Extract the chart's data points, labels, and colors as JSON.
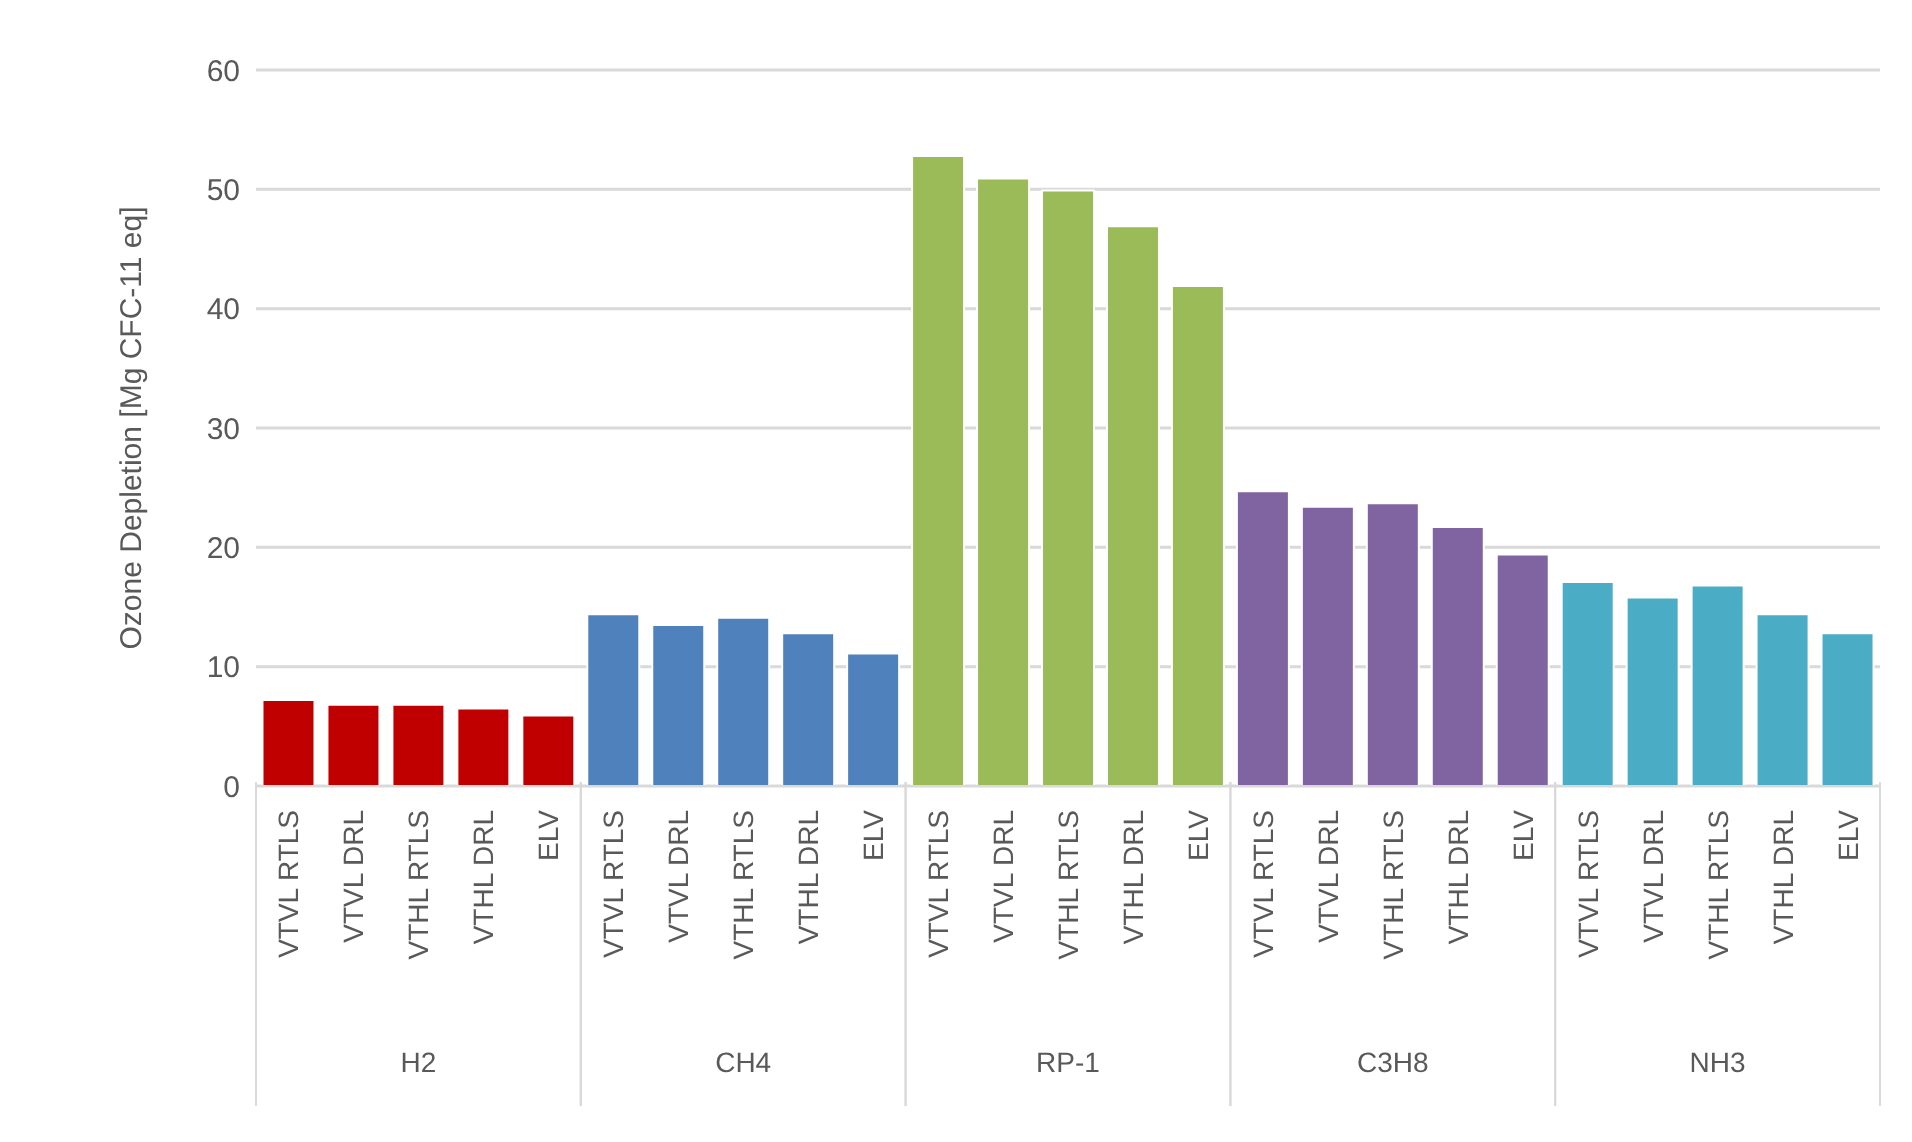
{
  "chart_data": {
    "type": "bar",
    "ylabel": "Ozone Depletion [Mg CFC-11 eq]",
    "categories": [
      "VTVL RTLS",
      "VTVL DRL",
      "VTHL RTLS",
      "VTHL DRL",
      "ELV",
      "VTVL RTLS",
      "VTVL DRL",
      "VTHL RTLS",
      "VTHL DRL",
      "ELV",
      "VTVL RTLS",
      "VTVL DRL",
      "VTHL RTLS",
      "VTHL DRL",
      "ELV",
      "VTVL RTLS",
      "VTVL DRL",
      "VTHL RTLS",
      "VTHL DRL",
      "ELV",
      "VTVL RTLS",
      "VTVL DRL",
      "VTHL RTLS",
      "VTHL DRL",
      "ELV"
    ],
    "series": [
      {
        "color": "#c00000",
        "values": [
          7.2,
          6.8,
          6.8,
          6.5,
          5.9,
          null,
          null,
          null,
          null,
          null,
          null,
          null,
          null,
          null,
          null,
          null,
          null,
          null,
          null,
          null,
          null,
          null,
          null,
          null,
          null
        ]
      },
      {
        "color": "#4f81bd",
        "values": [
          null,
          null,
          null,
          null,
          null,
          14.4,
          13.5,
          14.1,
          12.8,
          11.1,
          null,
          null,
          null,
          null,
          null,
          null,
          null,
          null,
          null,
          null,
          null,
          null,
          null,
          null,
          null
        ]
      },
      {
        "color": "#9bbb59",
        "values": [
          null,
          null,
          null,
          null,
          null,
          null,
          null,
          null,
          null,
          null,
          52.8,
          50.9,
          49.9,
          46.9,
          41.9,
          null,
          null,
          null,
          null,
          null,
          null,
          null,
          null,
          null,
          null
        ]
      },
      {
        "color": "#8064a2",
        "values": [
          null,
          null,
          null,
          null,
          null,
          null,
          null,
          null,
          null,
          null,
          null,
          null,
          null,
          null,
          null,
          24.7,
          23.4,
          23.7,
          21.7,
          19.4,
          null,
          null,
          null,
          null,
          null
        ]
      },
      {
        "color": "#4bacc6",
        "values": [
          null,
          null,
          null,
          null,
          null,
          null,
          null,
          null,
          null,
          null,
          null,
          null,
          null,
          null,
          null,
          null,
          null,
          null,
          null,
          null,
          17.1,
          15.8,
          16.8,
          14.4,
          12.8
        ]
      }
    ],
    "annotations": [
      "H2",
      "CH4",
      "RP-1",
      "C3H8",
      "NH3"
    ],
    "ylim": [
      0,
      60
    ],
    "yticks": [
      0,
      10,
      20,
      30,
      40,
      50,
      60
    ],
    "grid": "y",
    "legend": false
  }
}
